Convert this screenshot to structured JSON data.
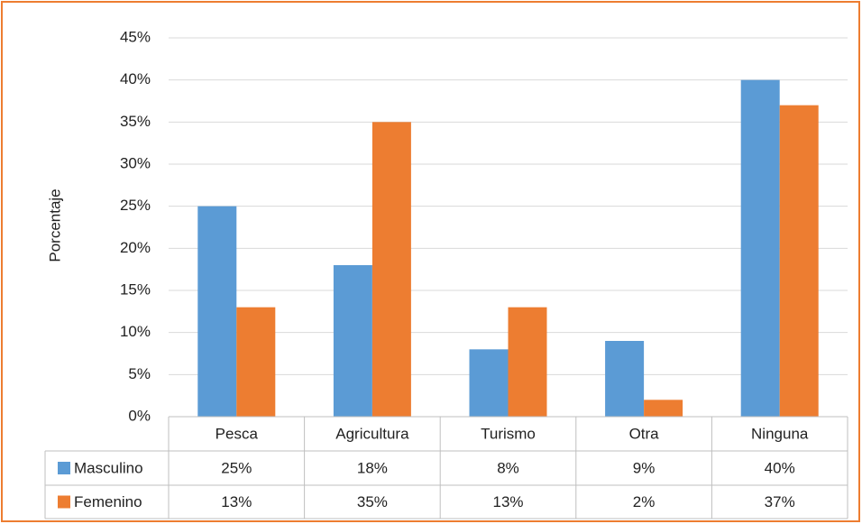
{
  "chart_data": {
    "type": "bar",
    "y_axis_label": "Porcentaje",
    "categories": [
      "Pesca",
      "Agricultura",
      "Turismo",
      "Otra",
      "Ninguna"
    ],
    "series": [
      {
        "name": "Masculino",
        "color": "#5b9bd5",
        "values": [
          25,
          18,
          8,
          9,
          40
        ],
        "value_labels": [
          "25%",
          "18%",
          "8%",
          "9%",
          "40%"
        ]
      },
      {
        "name": "Femenino",
        "color": "#ed7d31",
        "values": [
          13,
          35,
          13,
          2,
          37
        ],
        "value_labels": [
          "13%",
          "35%",
          "13%",
          "2%",
          "37%"
        ]
      }
    ],
    "ylim": [
      0,
      45
    ],
    "yticks": [
      {
        "value": 0,
        "label": "0%"
      },
      {
        "value": 5,
        "label": "5%"
      },
      {
        "value": 10,
        "label": "10%"
      },
      {
        "value": 15,
        "label": "15%"
      },
      {
        "value": 20,
        "label": "20%"
      },
      {
        "value": 25,
        "label": "25%"
      },
      {
        "value": 30,
        "label": "30%"
      },
      {
        "value": 35,
        "label": "35%"
      },
      {
        "value": 40,
        "label": "40%"
      },
      {
        "value": 45,
        "label": "45%"
      }
    ],
    "grid": true,
    "legend": "table"
  }
}
